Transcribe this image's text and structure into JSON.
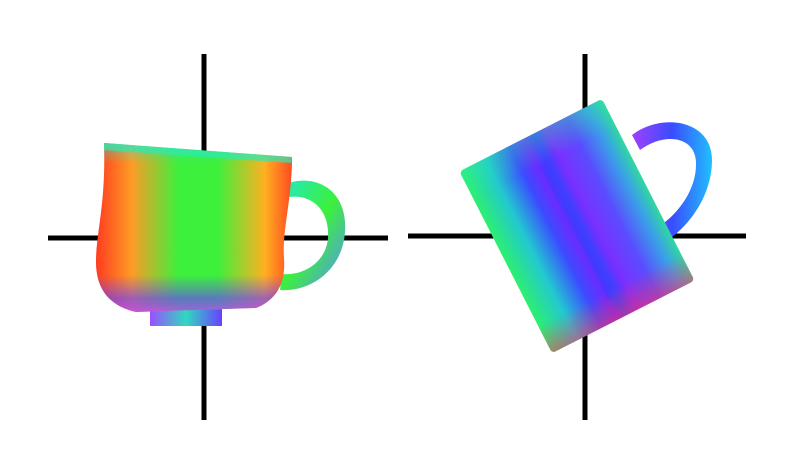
{
  "figure": {
    "background_color": "#ffffff",
    "axis_color": "#000000",
    "panels": [
      {
        "id": "left",
        "object": "teacup-icon",
        "shading": "normal-map",
        "palette": [
          "#ff3b1f",
          "#ffb020",
          "#3cf03c",
          "#22e8c8",
          "#6a3cff",
          "#c040ff"
        ]
      },
      {
        "id": "right",
        "object": "mug-icon",
        "shading": "normal-map",
        "palette": [
          "#2cf070",
          "#20c8d8",
          "#3a4cff",
          "#6a2cff",
          "#9a40ff",
          "#ff3060"
        ]
      }
    ]
  }
}
